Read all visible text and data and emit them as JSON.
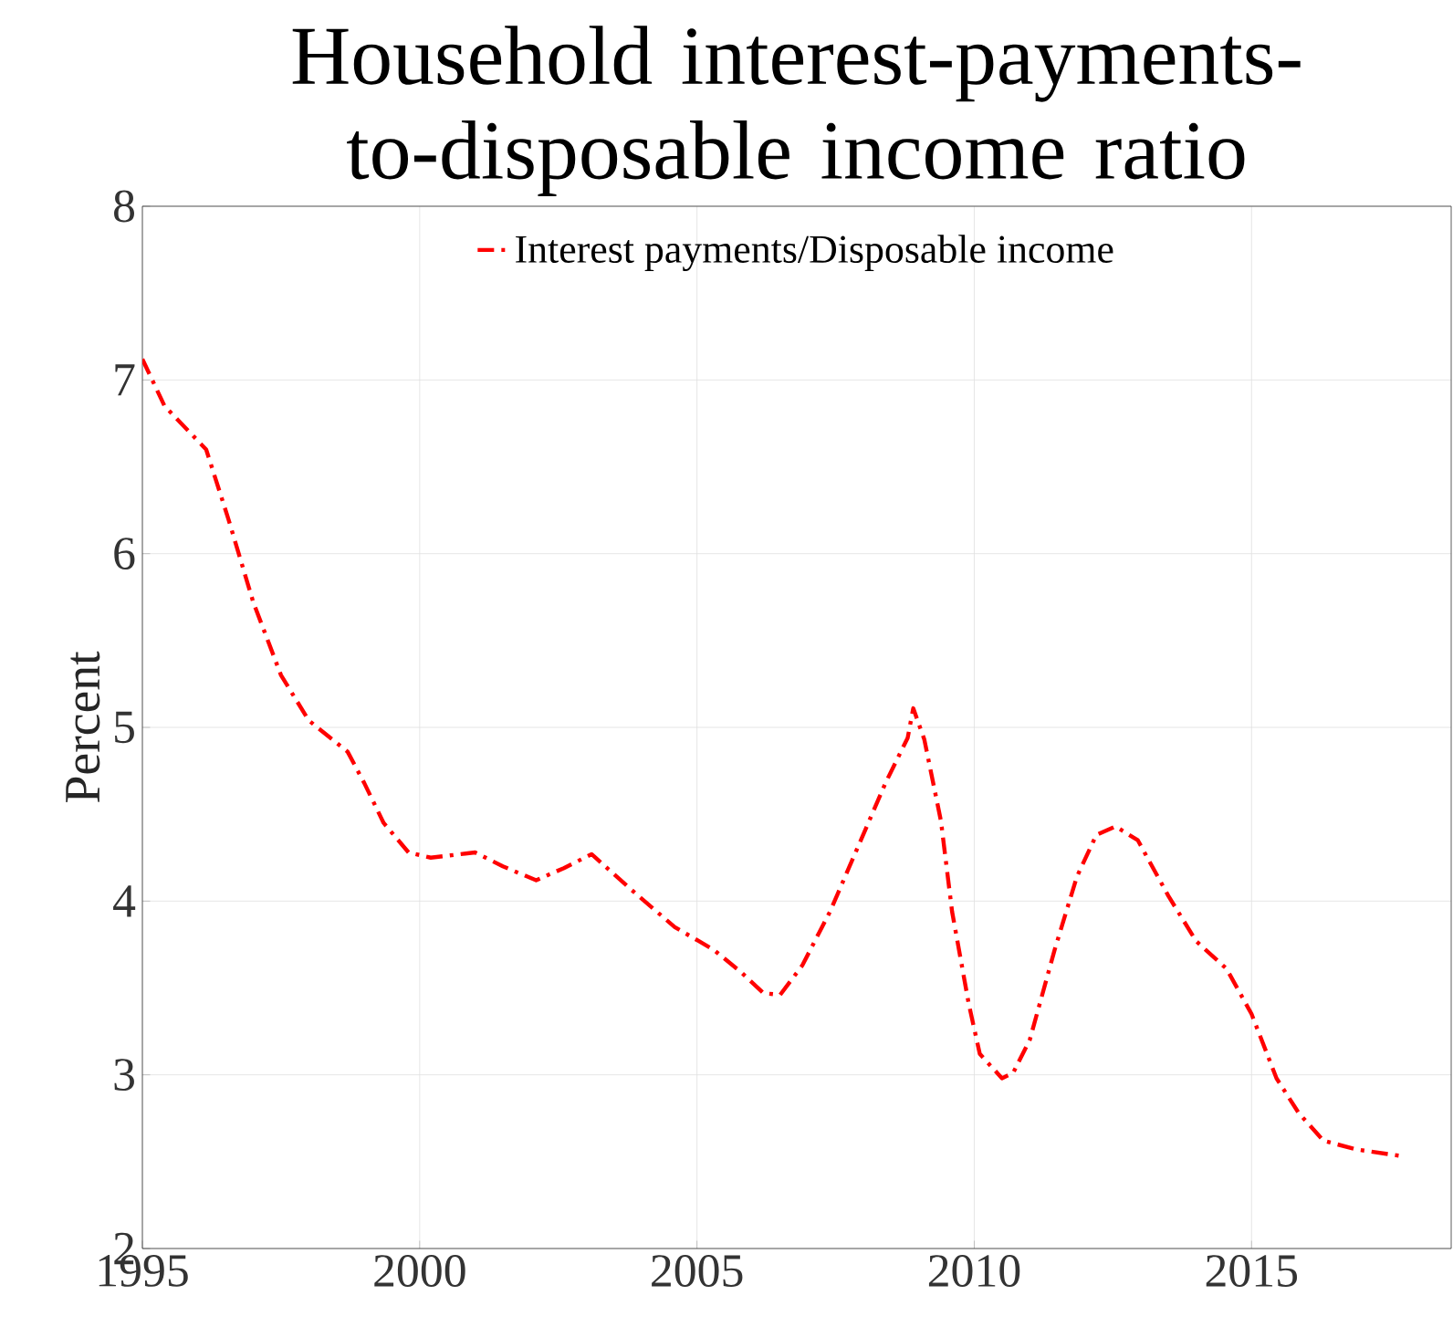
{
  "chart_data": {
    "type": "line",
    "title": "Household interest-payments-to-disposable income ratio",
    "ylabel": "Percent",
    "xlim": [
      1995,
      2018.6
    ],
    "xticks": [
      1995,
      2000,
      2005,
      2010,
      2015
    ],
    "ylim": [
      2,
      8
    ],
    "yticks": [
      2,
      3,
      4,
      5,
      6,
      7,
      8
    ],
    "grid": true,
    "legend": "top",
    "line_style": "dashed",
    "series": [
      {
        "name": "Interest payments/Disposable income",
        "color": "#ff0000",
        "x": [
          1995,
          1995.4,
          1996.15,
          1996.55,
          1997,
          1997.5,
          1998,
          1998.7,
          1999,
          1999.35,
          1999.8,
          2000.2,
          2001,
          2001.5,
          2002.1,
          2002.6,
          2003.1,
          2003.8,
          2004.6,
          2005.3,
          2005.8,
          2006.2,
          2006.5,
          2006.9,
          2007.4,
          2007.9,
          2008.4,
          2008.8,
          2008.9,
          2009.1,
          2009.4,
          2009.6,
          2009.9,
          2010.1,
          2010.5,
          2010.7,
          2011,
          2011.45,
          2011.85,
          2012.2,
          2012.55,
          2012.95,
          2013.5,
          2014,
          2014.55,
          2015,
          2015.45,
          2015.85,
          2016.3,
          2016.9,
          2017.75
        ],
        "values": [
          7.12,
          6.85,
          6.6,
          6.2,
          5.72,
          5.3,
          5.04,
          4.86,
          4.68,
          4.45,
          4.28,
          4.25,
          4.28,
          4.2,
          4.12,
          4.19,
          4.27,
          4.07,
          3.85,
          3.72,
          3.59,
          3.47,
          3.46,
          3.63,
          3.94,
          4.31,
          4.68,
          4.94,
          5.11,
          4.93,
          4.46,
          3.94,
          3.41,
          3.12,
          2.98,
          3.01,
          3.2,
          3.72,
          4.14,
          4.38,
          4.43,
          4.35,
          4.03,
          3.77,
          3.61,
          3.35,
          2.98,
          2.78,
          2.62,
          2.57,
          2.53
        ]
      }
    ]
  }
}
